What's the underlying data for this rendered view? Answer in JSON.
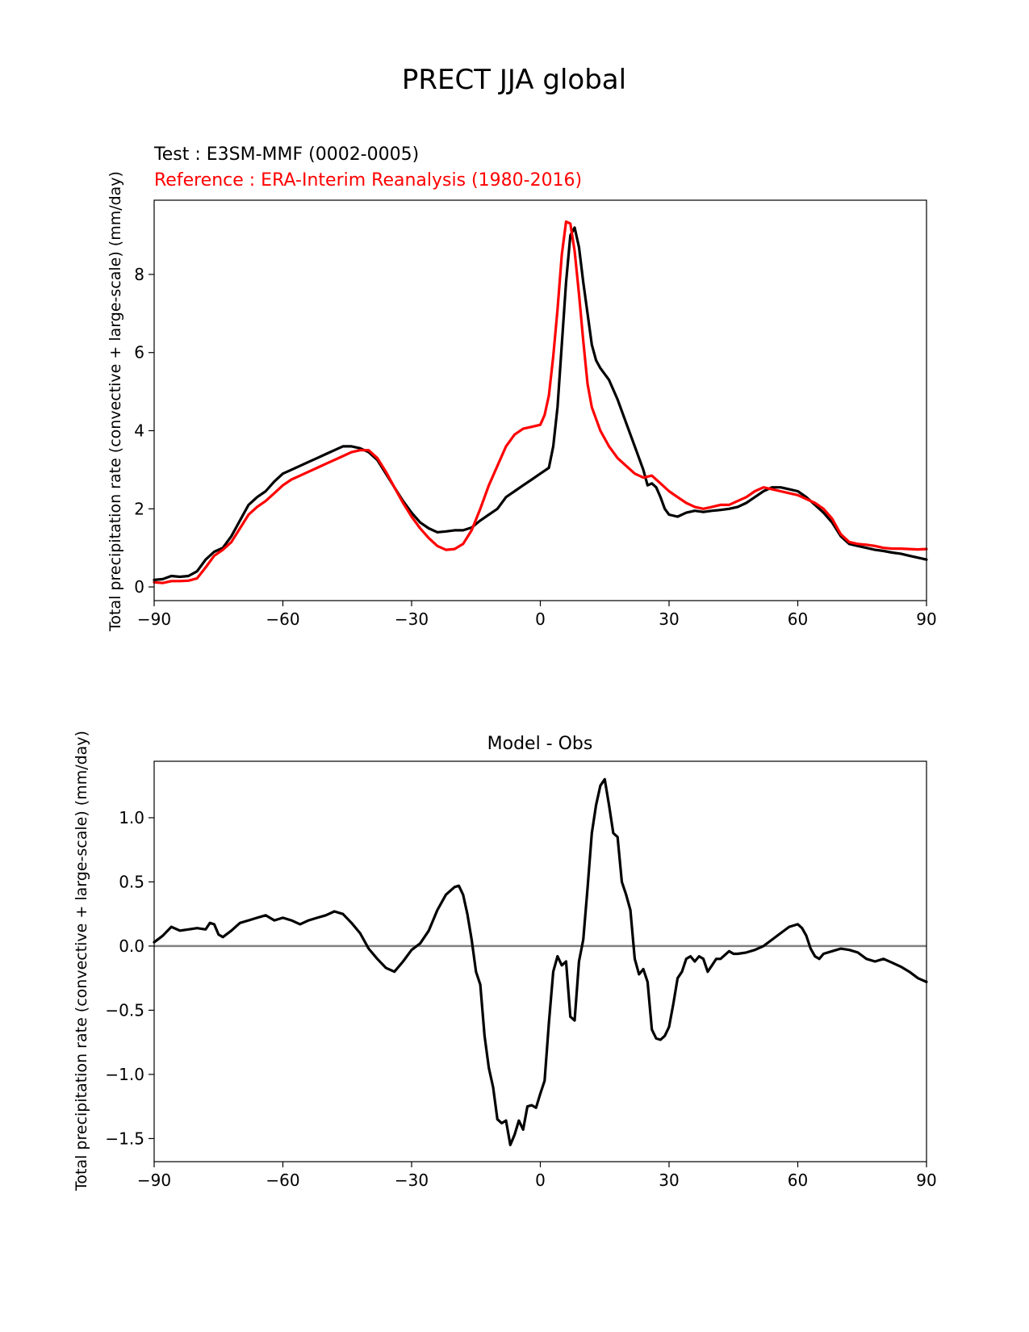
{
  "figure_title": "PRECT JJA global",
  "chart_data": [
    {
      "type": "line",
      "test_label": "Test : E3SM-MMF (0002-0005)",
      "reference_label": "Reference : ERA-Interim Reanalysis (1980-2016)",
      "ylabel": "Total precipitation rate (convective + large-scale) (mm/day)",
      "xlabel": "",
      "xlim": [
        -90,
        90
      ],
      "ylim": [
        -0.35,
        9.9
      ],
      "xticks": [
        -90,
        -60,
        -30,
        0,
        30,
        60,
        90
      ],
      "xtick_labels": [
        "−90",
        "−60",
        "−30",
        "0",
        "30",
        "60",
        "90"
      ],
      "yticks": [
        0,
        2,
        4,
        6,
        8
      ],
      "ytick_labels": [
        "0",
        "2",
        "4",
        "6",
        "8"
      ],
      "series": [
        {
          "name": "Test : E3SM-MMF (0002-0005)",
          "color": "#000000",
          "x": [
            -90,
            -88,
            -86,
            -84,
            -82,
            -80,
            -78,
            -76,
            -74,
            -72,
            -70,
            -68,
            -66,
            -64,
            -62,
            -60,
            -58,
            -56,
            -54,
            -52,
            -50,
            -48,
            -46,
            -44,
            -42,
            -40,
            -38,
            -36,
            -34,
            -32,
            -30,
            -28,
            -26,
            -24,
            -22,
            -20,
            -18,
            -16,
            -14,
            -12,
            -10,
            -8,
            -6,
            -4,
            -2,
            0,
            2,
            3,
            4,
            5,
            6,
            7,
            8,
            9,
            10,
            11,
            12,
            13,
            14,
            16,
            18,
            20,
            22,
            24,
            25,
            26,
            27,
            28,
            29,
            30,
            32,
            34,
            36,
            38,
            40,
            42,
            44,
            46,
            48,
            50,
            52,
            54,
            56,
            58,
            60,
            62,
            64,
            66,
            68,
            70,
            72,
            74,
            76,
            78,
            80,
            82,
            84,
            86,
            88,
            90
          ],
          "y": [
            0.18,
            0.2,
            0.28,
            0.26,
            0.28,
            0.4,
            0.7,
            0.9,
            1.0,
            1.3,
            1.7,
            2.1,
            2.3,
            2.45,
            2.7,
            2.9,
            3.0,
            3.1,
            3.2,
            3.3,
            3.4,
            3.5,
            3.6,
            3.6,
            3.55,
            3.45,
            3.25,
            2.9,
            2.55,
            2.2,
            1.9,
            1.65,
            1.5,
            1.4,
            1.42,
            1.45,
            1.45,
            1.52,
            1.7,
            1.85,
            2.0,
            2.3,
            2.45,
            2.6,
            2.75,
            2.9,
            3.05,
            3.6,
            4.6,
            6.2,
            7.8,
            9.0,
            9.2,
            8.7,
            7.8,
            7.0,
            6.2,
            5.8,
            5.6,
            5.3,
            4.8,
            4.2,
            3.6,
            3.0,
            2.6,
            2.65,
            2.55,
            2.3,
            2.0,
            1.85,
            1.8,
            1.9,
            1.95,
            1.92,
            1.95,
            1.97,
            2.0,
            2.05,
            2.15,
            2.3,
            2.45,
            2.55,
            2.55,
            2.5,
            2.45,
            2.3,
            2.1,
            1.9,
            1.65,
            1.3,
            1.1,
            1.05,
            1.0,
            0.95,
            0.92,
            0.88,
            0.85,
            0.8,
            0.75,
            0.7
          ]
        },
        {
          "name": "Reference : ERA-Interim Reanalysis (1980-2016)",
          "color": "#ff0000",
          "x": [
            -90,
            -88,
            -86,
            -84,
            -82,
            -80,
            -78,
            -76,
            -74,
            -72,
            -70,
            -68,
            -66,
            -64,
            -62,
            -60,
            -58,
            -56,
            -54,
            -52,
            -50,
            -48,
            -46,
            -44,
            -42,
            -40,
            -38,
            -36,
            -34,
            -32,
            -30,
            -28,
            -26,
            -24,
            -22,
            -20,
            -18,
            -16,
            -14,
            -12,
            -10,
            -8,
            -6,
            -4,
            -2,
            0,
            1,
            2,
            3,
            4,
            5,
            6,
            7,
            8,
            9,
            10,
            11,
            12,
            13,
            14,
            16,
            18,
            20,
            22,
            24,
            26,
            28,
            30,
            32,
            34,
            36,
            38,
            40,
            42,
            44,
            46,
            48,
            50,
            52,
            54,
            56,
            58,
            60,
            62,
            64,
            66,
            68,
            70,
            72,
            74,
            76,
            78,
            80,
            82,
            84,
            86,
            88,
            90
          ],
          "y": [
            0.12,
            0.1,
            0.15,
            0.15,
            0.16,
            0.22,
            0.5,
            0.8,
            0.95,
            1.15,
            1.5,
            1.85,
            2.05,
            2.2,
            2.4,
            2.6,
            2.75,
            2.85,
            2.95,
            3.05,
            3.15,
            3.25,
            3.35,
            3.45,
            3.5,
            3.5,
            3.3,
            2.95,
            2.55,
            2.15,
            1.8,
            1.5,
            1.25,
            1.05,
            0.95,
            0.97,
            1.1,
            1.45,
            2.0,
            2.6,
            3.1,
            3.6,
            3.9,
            4.05,
            4.1,
            4.15,
            4.4,
            4.9,
            5.9,
            7.1,
            8.5,
            9.35,
            9.3,
            8.6,
            7.5,
            6.3,
            5.2,
            4.6,
            4.3,
            4.0,
            3.6,
            3.3,
            3.1,
            2.9,
            2.8,
            2.85,
            2.65,
            2.45,
            2.3,
            2.15,
            2.05,
            2.0,
            2.05,
            2.1,
            2.1,
            2.2,
            2.3,
            2.45,
            2.55,
            2.5,
            2.45,
            2.4,
            2.35,
            2.25,
            2.15,
            2.0,
            1.75,
            1.35,
            1.15,
            1.1,
            1.08,
            1.05,
            1.0,
            0.98,
            0.98,
            0.97,
            0.96,
            0.97
          ]
        }
      ]
    },
    {
      "type": "line",
      "title": "Model - Obs",
      "ylabel": "Total precipitation rate (convective + large-scale) (mm/day)",
      "xlabel": "",
      "xlim": [
        -90,
        90
      ],
      "ylim": [
        -1.68,
        1.44
      ],
      "xticks": [
        -90,
        -60,
        -30,
        0,
        30,
        60,
        90
      ],
      "xtick_labels": [
        "−90",
        "−60",
        "−30",
        "0",
        "30",
        "60",
        "90"
      ],
      "yticks": [
        -1.5,
        -1.0,
        -0.5,
        0.0,
        0.5,
        1.0
      ],
      "ytick_labels": [
        "−1.5",
        "−1.0",
        "−0.5",
        "0.0",
        "0.5",
        "1.0"
      ],
      "zero_line": {
        "value": 0.0,
        "color": "#808080"
      },
      "series": [
        {
          "name": "Model - Obs",
          "color": "#000000",
          "x": [
            -90,
            -88,
            -86,
            -84,
            -82,
            -80,
            -78,
            -77,
            -76,
            -75,
            -74,
            -72,
            -70,
            -68,
            -66,
            -64,
            -62,
            -60,
            -58,
            -56,
            -54,
            -52,
            -50,
            -48,
            -46,
            -44,
            -42,
            -40,
            -38,
            -36,
            -34,
            -32,
            -30,
            -28,
            -26,
            -24,
            -22,
            -20,
            -19,
            -18,
            -17,
            -16,
            -15,
            -14,
            -13,
            -12,
            -11,
            -10,
            -9,
            -8,
            -7,
            -6,
            -5,
            -4,
            -3,
            -2,
            -1,
            0,
            1,
            2,
            3,
            4,
            5,
            6,
            7,
            8,
            9,
            10,
            11,
            12,
            13,
            14,
            15,
            16,
            17,
            18,
            19,
            20,
            21,
            22,
            23,
            24,
            25,
            26,
            27,
            28,
            29,
            30,
            31,
            32,
            33,
            34,
            35,
            36,
            37,
            38,
            39,
            40,
            41,
            42,
            43,
            44,
            45,
            46,
            48,
            50,
            52,
            54,
            56,
            58,
            60,
            61,
            62,
            63,
            64,
            65,
            66,
            68,
            70,
            72,
            74,
            76,
            78,
            80,
            82,
            84,
            86,
            88,
            90
          ],
          "y": [
            0.03,
            0.08,
            0.15,
            0.12,
            0.13,
            0.14,
            0.13,
            0.18,
            0.17,
            0.09,
            0.07,
            0.12,
            0.18,
            0.2,
            0.22,
            0.24,
            0.2,
            0.22,
            0.2,
            0.17,
            0.2,
            0.22,
            0.24,
            0.27,
            0.25,
            0.18,
            0.1,
            -0.02,
            -0.1,
            -0.17,
            -0.2,
            -0.12,
            -0.03,
            0.02,
            0.12,
            0.28,
            0.4,
            0.46,
            0.47,
            0.4,
            0.25,
            0.05,
            -0.2,
            -0.3,
            -0.7,
            -0.95,
            -1.1,
            -1.35,
            -1.38,
            -1.36,
            -1.55,
            -1.47,
            -1.36,
            -1.43,
            -1.25,
            -1.24,
            -1.26,
            -1.15,
            -1.05,
            -0.6,
            -0.2,
            -0.08,
            -0.15,
            -0.12,
            -0.55,
            -0.58,
            -0.12,
            0.05,
            0.45,
            0.88,
            1.1,
            1.25,
            1.3,
            1.1,
            0.88,
            0.85,
            0.5,
            0.4,
            0.28,
            -0.1,
            -0.22,
            -0.18,
            -0.28,
            -0.65,
            -0.72,
            -0.73,
            -0.7,
            -0.63,
            -0.45,
            -0.25,
            -0.2,
            -0.1,
            -0.08,
            -0.12,
            -0.08,
            -0.1,
            -0.2,
            -0.15,
            -0.1,
            -0.1,
            -0.07,
            -0.04,
            -0.06,
            -0.06,
            -0.05,
            -0.03,
            0.0,
            0.05,
            0.1,
            0.15,
            0.17,
            0.14,
            0.08,
            -0.02,
            -0.08,
            -0.1,
            -0.06,
            -0.04,
            -0.02,
            -0.03,
            -0.05,
            -0.1,
            -0.12,
            -0.1,
            -0.13,
            -0.16,
            -0.2,
            -0.25,
            -0.28
          ]
        }
      ]
    }
  ]
}
